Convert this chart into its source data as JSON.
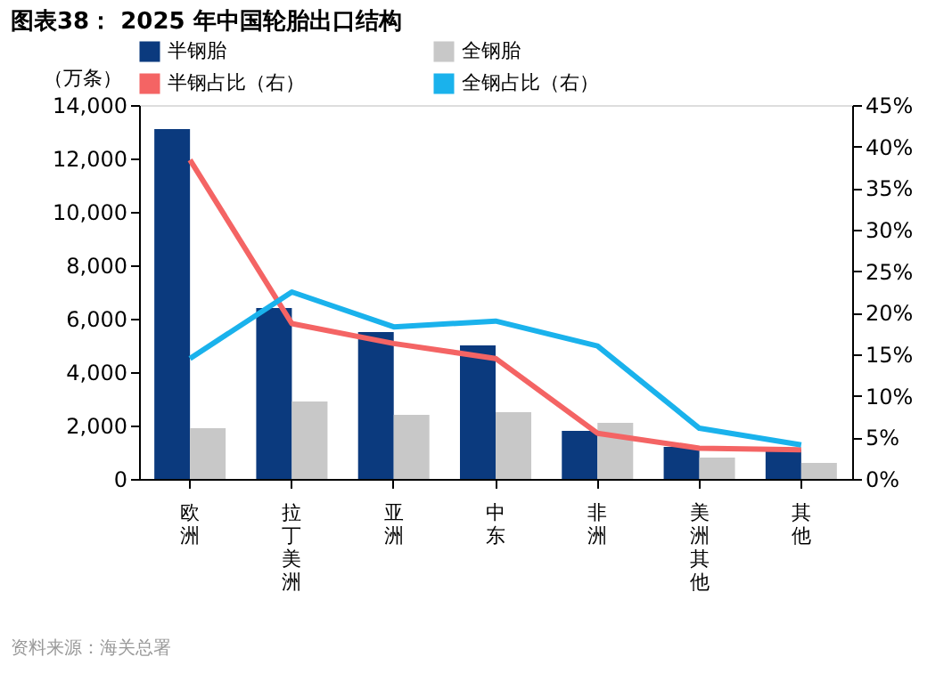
{
  "chart_data": {
    "type": "bar",
    "title": "图表38： 2025 年中国轮胎出口结构",
    "ylabel": "（万条）",
    "categories": [
      "欧洲",
      "拉丁美洲",
      "亚洲",
      "中东",
      "非洲",
      "美洲其他",
      "其他"
    ],
    "series": [
      {
        "name": "半钢胎",
        "color": "#0b3a7e",
        "values": [
          13100,
          6400,
          5500,
          5000,
          1800,
          1200,
          1100
        ]
      },
      {
        "name": "全钢胎",
        "color": "#c8c8c8",
        "values": [
          1900,
          2900,
          2400,
          2500,
          2100,
          800,
          600
        ]
      },
      {
        "name": "半钢占比（右）",
        "type": "line",
        "axis": "y2",
        "color": "#f46464",
        "values": [
          38.4,
          18.7,
          16.3,
          14.5,
          5.5,
          3.7,
          3.5
        ]
      },
      {
        "name": "全钢占比（右）",
        "type": "line",
        "axis": "y2",
        "color": "#1ab2ec",
        "values": [
          14.5,
          22.5,
          18.3,
          19.0,
          16.0,
          6.1,
          4.1
        ]
      }
    ],
    "ylim": [
      0,
      14000
    ],
    "yticks": [
      0,
      {
        "value": 2000,
        "label": "2,000"
      },
      {
        "value": 4000,
        "label": "4,000"
      },
      {
        "value": 6000,
        "label": "6,000"
      },
      {
        "value": 8000,
        "label": "8,000"
      },
      {
        "value": 10000,
        "label": "10,000"
      },
      {
        "value": 12000,
        "label": "12,000"
      },
      {
        "value": 14000,
        "label": "14,000"
      }
    ],
    "y2lim": [
      0,
      45
    ],
    "y2ticks": [
      {
        "value": 0,
        "label": "0%"
      },
      {
        "value": 5,
        "label": "5%"
      },
      {
        "value": 10,
        "label": "10%"
      },
      {
        "value": 15,
        "label": "15%"
      },
      {
        "value": 20,
        "label": "20%"
      },
      {
        "value": 25,
        "label": "25%"
      },
      {
        "value": 30,
        "label": "30%"
      },
      {
        "value": 35,
        "label": "35%"
      },
      {
        "value": 40,
        "label": "40%"
      },
      {
        "value": 45,
        "label": "45%"
      }
    ],
    "legend": "top",
    "grid": false,
    "annotations": [
      "资料来源：海关总署"
    ]
  }
}
